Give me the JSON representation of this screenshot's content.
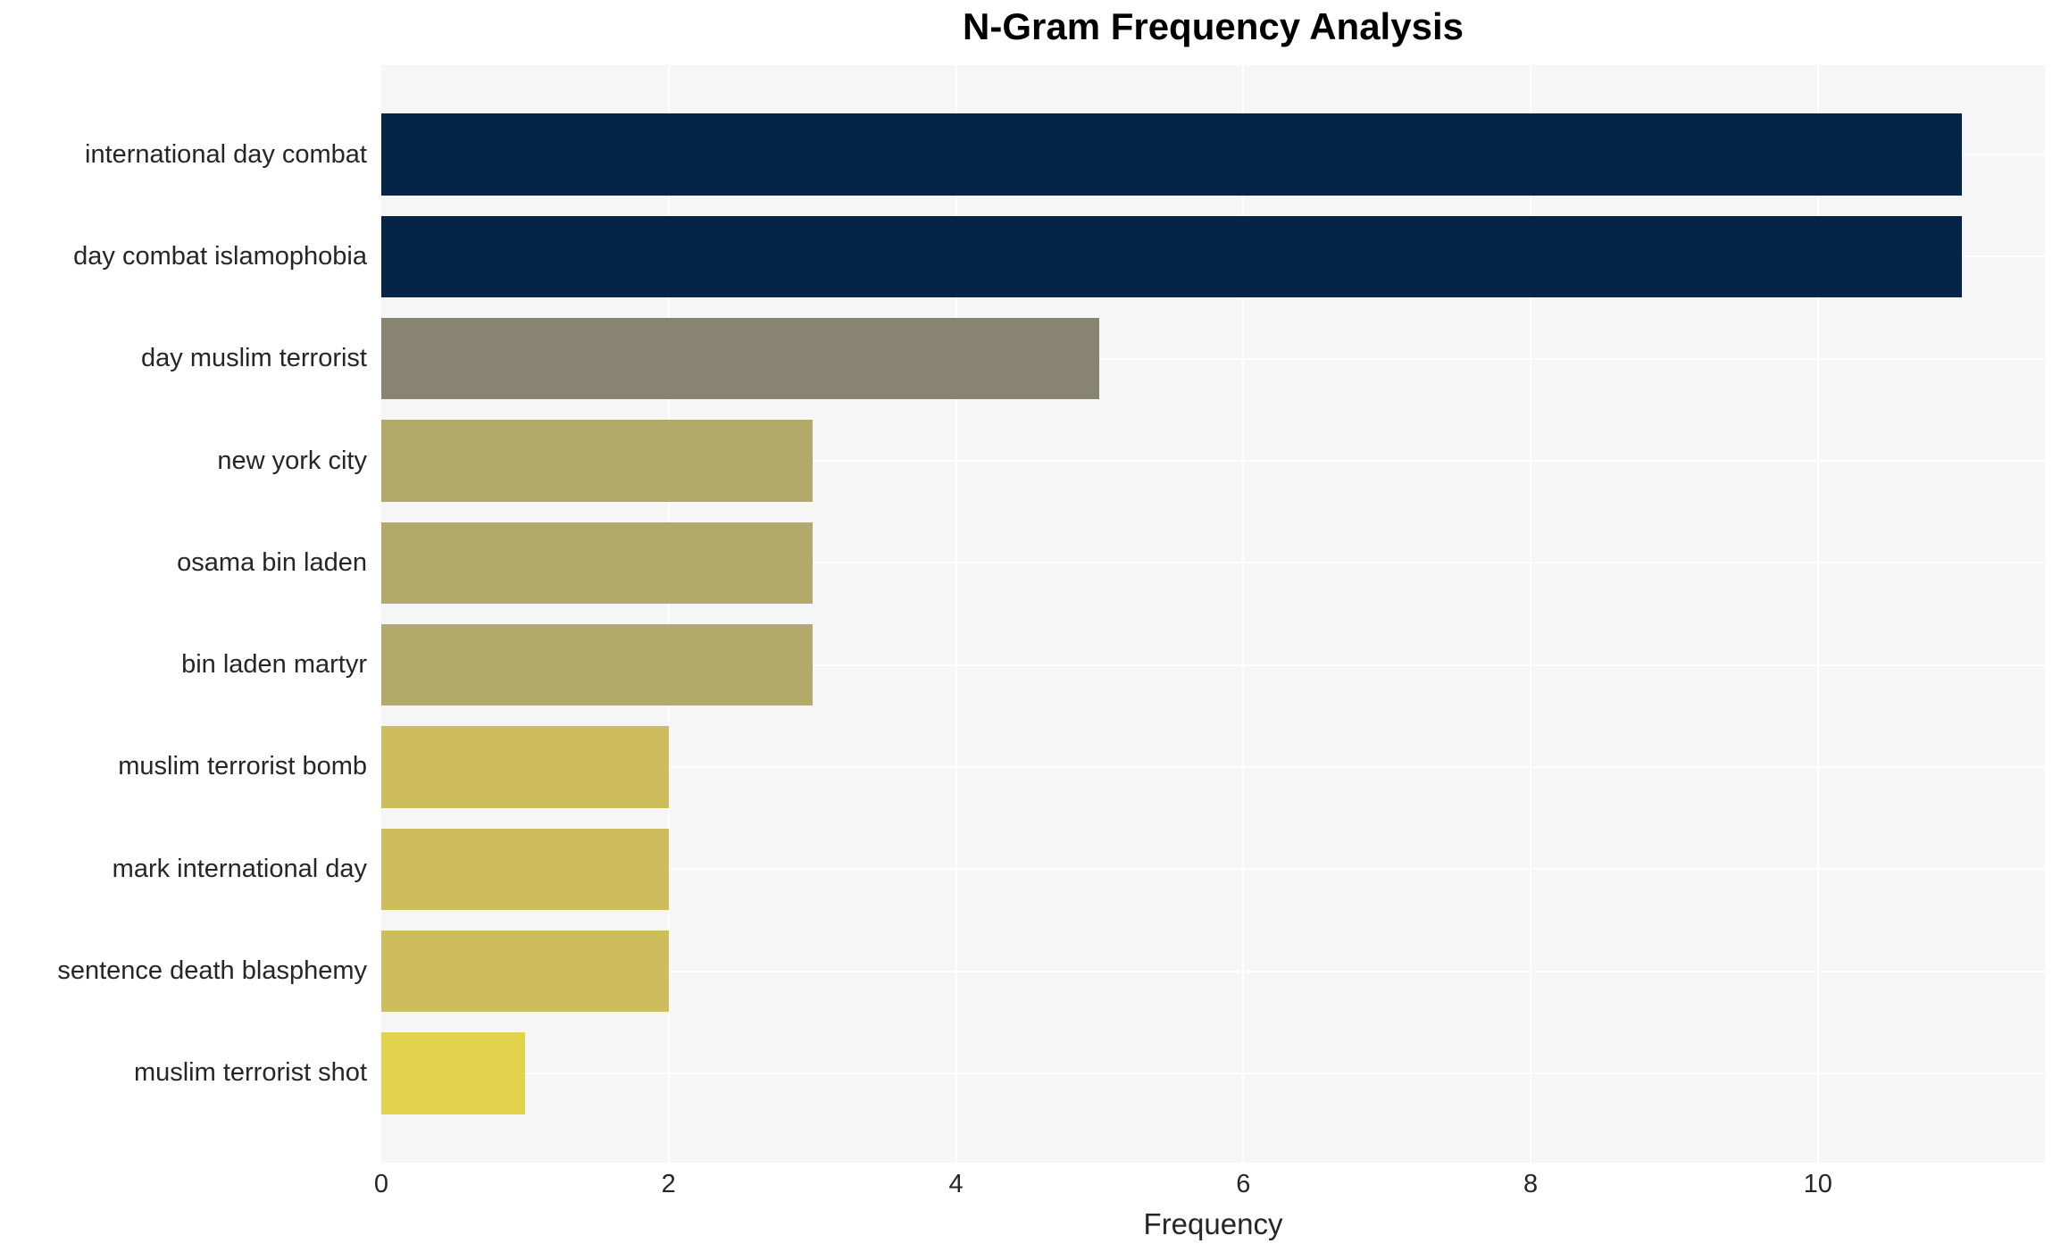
{
  "title": "N-Gram Frequency Analysis",
  "chart_data": {
    "type": "bar",
    "orientation": "horizontal",
    "title": "N-Gram Frequency Analysis",
    "xlabel": "Frequency",
    "ylabel": "",
    "categories": [
      "international day combat",
      "day combat islamophobia",
      "day muslim terrorist",
      "new york city",
      "osama bin laden",
      "bin laden martyr",
      "muslim terrorist bomb",
      "mark international day",
      "sentence death blasphemy",
      "muslim terrorist shot"
    ],
    "values": [
      11,
      11,
      5,
      3,
      3,
      3,
      2,
      2,
      2,
      1
    ],
    "bar_colors": [
      "#062348",
      "#062348",
      "#878471",
      "#b3a96b",
      "#b3a96b",
      "#b3a96b",
      "#cdbd5c",
      "#cdbd5c",
      "#cdbd5c",
      "#e3d34c"
    ],
    "xlim": [
      0,
      11.58
    ],
    "xticks": [
      0,
      2,
      4,
      6,
      8,
      10
    ],
    "grid": true,
    "legend": "none",
    "plot_background": "#f6f6f6",
    "grid_color": "#ffffff",
    "text_color": "#262626",
    "title_color": "#000000"
  }
}
